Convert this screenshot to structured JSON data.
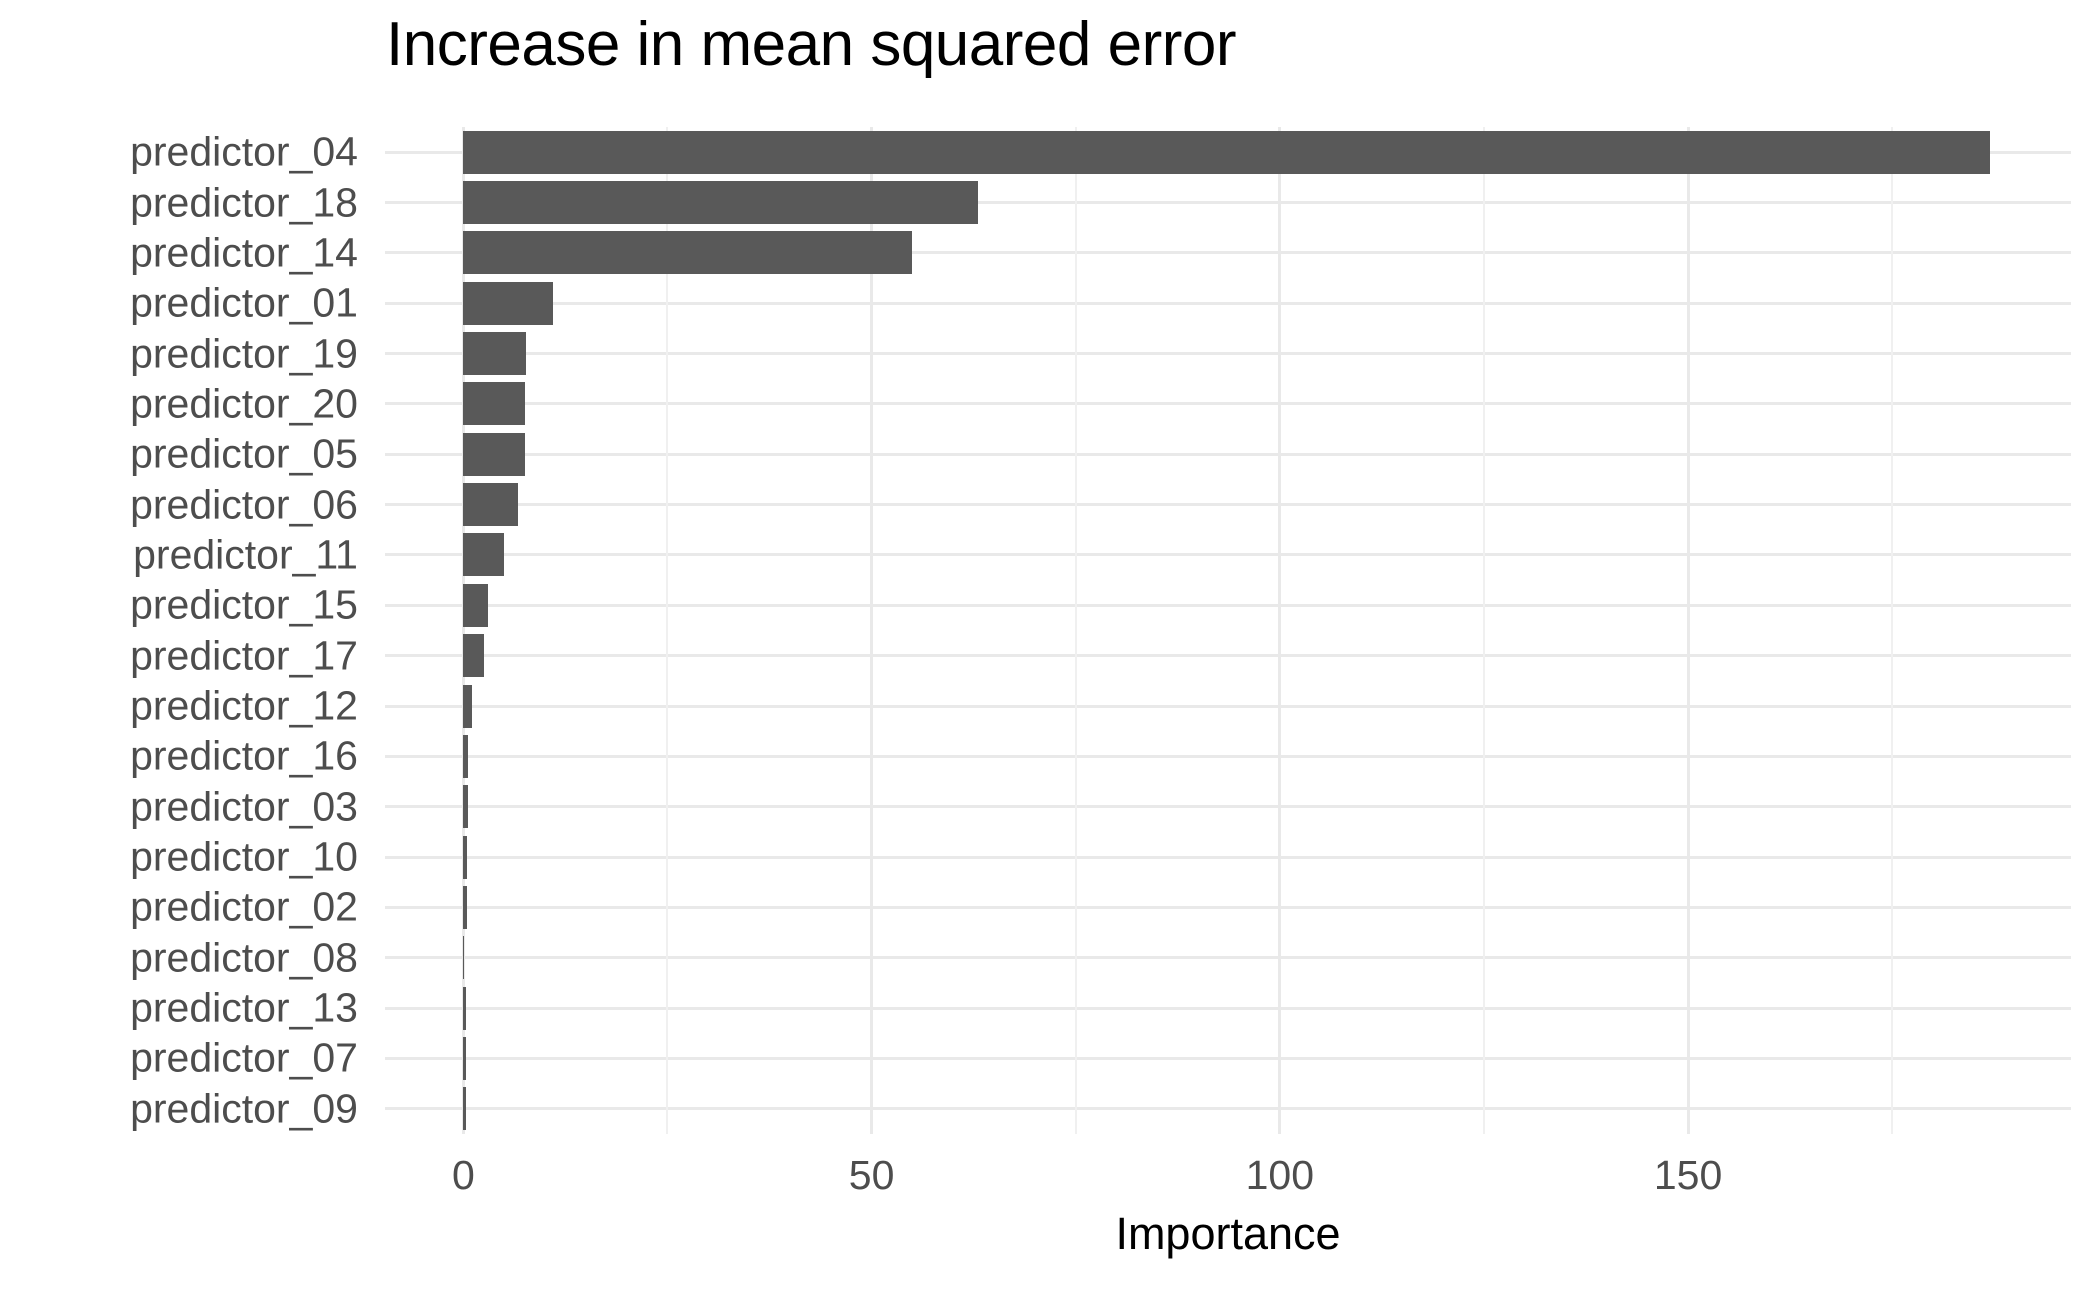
{
  "chart_data": {
    "type": "bar",
    "orientation": "horizontal",
    "title": "Increase in mean squared error",
    "xlabel": "Importance",
    "ylabel": "",
    "categories": [
      "predictor_04",
      "predictor_18",
      "predictor_14",
      "predictor_01",
      "predictor_19",
      "predictor_20",
      "predictor_05",
      "predictor_06",
      "predictor_11",
      "predictor_15",
      "predictor_17",
      "predictor_12",
      "predictor_16",
      "predictor_03",
      "predictor_10",
      "predictor_02",
      "predictor_08",
      "predictor_13",
      "predictor_07",
      "predictor_09"
    ],
    "values": [
      187,
      63,
      55,
      11,
      7.7,
      7.6,
      7.5,
      6.7,
      5.0,
      3.0,
      2.5,
      1.0,
      0.6,
      0.55,
      0.4,
      0.4,
      0.05,
      0.3,
      0.3,
      0.35
    ],
    "x_ticks": [
      0,
      50,
      100,
      150
    ],
    "x_tick_labels": [
      "0",
      "50",
      "100",
      "150"
    ],
    "x_minor_gridlines": [
      25,
      75,
      125,
      175
    ],
    "xlim": [
      -9.6,
      196.9
    ],
    "grid": "on",
    "legend": "none",
    "colors": {
      "bar": "#595959",
      "grid_major": "#E9E9E9",
      "grid_minor": "#F0F0F0",
      "axis_text": "#4D4D4D",
      "title_text": "#000000",
      "background": "#FFFFFF"
    }
  }
}
